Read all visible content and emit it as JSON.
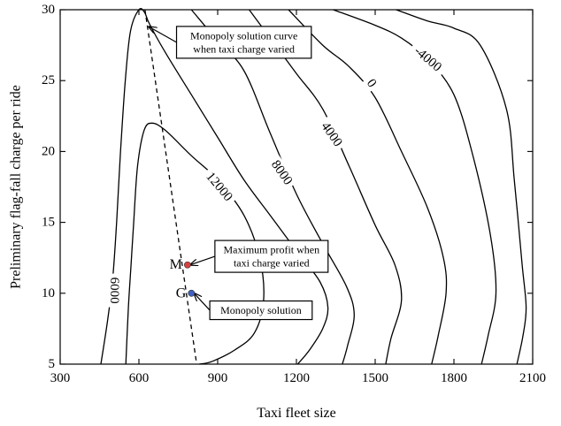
{
  "chart_data": {
    "type": "contour",
    "title": "",
    "xlabel": "Taxi fleet size",
    "ylabel": "Preliminary flag-fall charge per ride",
    "xlim": [
      300,
      2100
    ],
    "ylim": [
      5,
      30
    ],
    "xticks": [
      300,
      600,
      900,
      1200,
      1500,
      1800,
      2100
    ],
    "yticks": [
      5,
      10,
      15,
      20,
      25,
      30
    ],
    "grid": false,
    "contours": [
      {
        "level": "6000",
        "label": "6000",
        "label_at": [
          505,
          10.2
        ],
        "label_rotation": 90,
        "points": [
          [
            455,
            5
          ],
          [
            480,
            8
          ],
          [
            500,
            11
          ],
          [
            515,
            15
          ],
          [
            530,
            20
          ],
          [
            548,
            25
          ],
          [
            568,
            28.5
          ],
          [
            600,
            30
          ],
          [
            622,
            29.8
          ],
          [
            640,
            29
          ],
          [
            700,
            27
          ],
          [
            800,
            24
          ],
          [
            900,
            21
          ],
          [
            1000,
            18
          ],
          [
            1100,
            15.5
          ],
          [
            1200,
            13
          ],
          [
            1290,
            10.8
          ],
          [
            1320,
            9
          ],
          [
            1300,
            7.5
          ],
          [
            1250,
            6
          ],
          [
            1205,
            5
          ]
        ]
      },
      {
        "level": "12000",
        "label": "12000",
        "label_at": [
          905,
          17.5
        ],
        "label_rotation": 50,
        "points": [
          [
            550,
            5
          ],
          [
            560,
            9
          ],
          [
            570,
            12
          ],
          [
            580,
            15
          ],
          [
            595,
            19
          ],
          [
            620,
            21.5
          ],
          [
            650,
            22
          ],
          [
            700,
            21.5
          ],
          [
            800,
            19.7
          ],
          [
            900,
            18
          ],
          [
            1000,
            15.5
          ],
          [
            1060,
            12.5
          ],
          [
            1075,
            9.5
          ],
          [
            1040,
            7.2
          ],
          [
            965,
            6
          ],
          [
            880,
            5.2
          ],
          [
            830,
            5
          ]
        ]
      },
      {
        "level": "8000",
        "label": "8000",
        "label_at": [
          1143,
          18.5
        ],
        "label_rotation": 55,
        "points": [
          [
            800,
            30
          ],
          [
            900,
            27.8
          ],
          [
            1000,
            25.7
          ],
          [
            1100,
            21.3
          ],
          [
            1200,
            17
          ],
          [
            1300,
            13.5
          ],
          [
            1390,
            10.5
          ],
          [
            1420,
            8.5
          ],
          [
            1395,
            6.3
          ],
          [
            1375,
            5
          ]
        ]
      },
      {
        "level": "4000",
        "label": "4000",
        "label_at": [
          1333,
          21.2
        ],
        "label_rotation": 55,
        "points": [
          [
            1020,
            30
          ],
          [
            1100,
            28
          ],
          [
            1200,
            25.5
          ],
          [
            1300,
            23
          ],
          [
            1400,
            19
          ],
          [
            1500,
            14.8
          ],
          [
            1575,
            12
          ],
          [
            1600,
            9.5
          ],
          [
            1560,
            6.8
          ],
          [
            1540,
            5
          ]
        ]
      },
      {
        "level": "0",
        "label": "0",
        "label_at": [
          1485,
          24.8
        ],
        "label_rotation": 55,
        "points": [
          [
            1170,
            30
          ],
          [
            1300,
            27.5
          ],
          [
            1400,
            26
          ],
          [
            1500,
            23.8
          ],
          [
            1600,
            20
          ],
          [
            1700,
            16
          ],
          [
            1760,
            12.5
          ],
          [
            1770,
            10
          ],
          [
            1740,
            7
          ],
          [
            1715,
            5
          ]
        ]
      },
      {
        "level": "-4000",
        "label": "-4000",
        "label_at": [
          1700,
          26.5
        ],
        "label_rotation": 40,
        "points": [
          [
            1340,
            30
          ],
          [
            1500,
            28.9
          ],
          [
            1600,
            28
          ],
          [
            1700,
            26.5
          ],
          [
            1800,
            24
          ],
          [
            1875,
            19.5
          ],
          [
            1940,
            14
          ],
          [
            1960,
            10
          ],
          [
            1930,
            7
          ],
          [
            1905,
            5
          ]
        ]
      },
      {
        "level": "",
        "label": "",
        "points": [
          [
            1580,
            30
          ],
          [
            1700,
            29.2
          ],
          [
            1800,
            28.7
          ],
          [
            1900,
            27.5
          ],
          [
            2000,
            23
          ],
          [
            2030,
            18
          ],
          [
            2060,
            12
          ],
          [
            2075,
            9
          ],
          [
            2063,
            7
          ],
          [
            2040,
            5
          ]
        ]
      }
    ],
    "dashed_curve": {
      "name": "Monopoly solution curve",
      "points": [
        [
          623,
          30
        ],
        [
          820,
          5
        ]
      ]
    },
    "points": [
      {
        "label": "M",
        "x": 785,
        "y": 12,
        "color": "#d84040"
      },
      {
        "label": "G",
        "x": 800,
        "y": 10,
        "color": "#4060c0"
      }
    ],
    "annotations": [
      {
        "lines": [
          "Monopoly solution curve",
          "when taxi charge varied"
        ],
        "target": [
          638,
          28.8
        ],
        "box_at": [
          1000,
          27.7
        ]
      },
      {
        "lines": [
          "Maximum profit when",
          "taxi charge varied"
        ],
        "target": [
          795,
          12
        ],
        "box_at": [
          1105,
          12.6
        ]
      },
      {
        "lines": [
          "Monopoly solution"
        ],
        "target": [
          810,
          10
        ],
        "box_at": [
          1065,
          8.8
        ]
      }
    ]
  }
}
